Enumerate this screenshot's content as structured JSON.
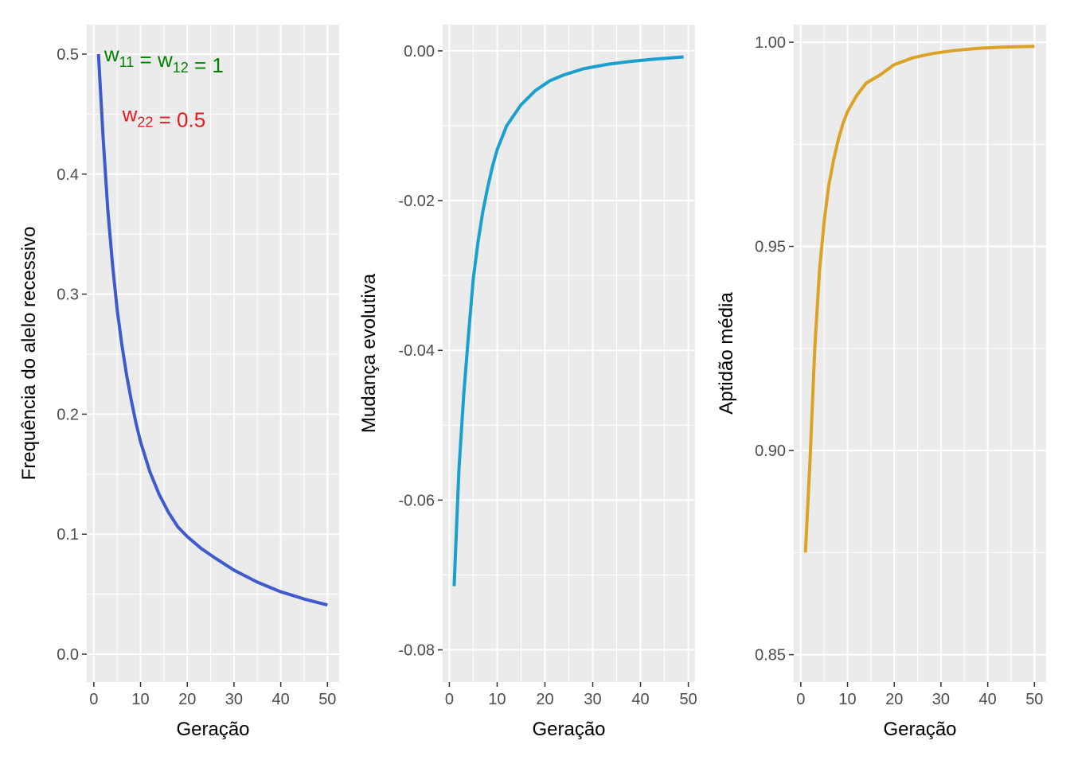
{
  "chart_data": [
    {
      "type": "line",
      "xlabel": "Geração",
      "ylabel": "Frequência do alelo recessivo",
      "xlim": [
        -1.5,
        52.5
      ],
      "ylim": [
        -0.0232,
        0.5245
      ],
      "xticks": [
        0,
        10,
        20,
        30,
        40,
        50
      ],
      "yticks": [
        0.0,
        0.1,
        0.2,
        0.3,
        0.4,
        0.5
      ],
      "ytick_labels": [
        "0.0",
        "0.1",
        "0.2",
        "0.3",
        "0.4",
        "0.5"
      ],
      "series_color": "#3f5acd",
      "x": [
        1,
        2,
        3,
        4,
        5,
        6,
        7,
        8,
        9,
        10,
        12,
        14,
        16,
        18,
        20,
        23,
        26,
        30,
        35,
        40,
        45,
        50
      ],
      "y": [
        0.5,
        0.43,
        0.37,
        0.325,
        0.287,
        0.258,
        0.233,
        0.212,
        0.193,
        0.177,
        0.152,
        0.133,
        0.118,
        0.106,
        0.098,
        0.088,
        0.08,
        0.07,
        0.06,
        0.052,
        0.046,
        0.041
      ],
      "annotations": [
        {
          "parts": [
            {
              "t": "w",
              "sub": "11"
            },
            {
              "t": " = "
            },
            {
              "t": "w",
              "sub": "12"
            },
            {
              "t": " = 1"
            }
          ],
          "x": 15,
          "y": 0.5,
          "color": "#008000"
        },
        {
          "parts": [
            {
              "t": "w",
              "sub": "22"
            },
            {
              "t": " = 0.5"
            }
          ],
          "x": 15,
          "y": 0.45,
          "color": "#e41a1c"
        }
      ]
    },
    {
      "type": "line",
      "xlabel": "Geração",
      "ylabel": "Mudança evolutiva",
      "xlim": [
        -1.4,
        51.4
      ],
      "ylim": [
        -0.0843,
        0.0035
      ],
      "xticks": [
        0,
        10,
        20,
        30,
        40,
        50
      ],
      "yticks": [
        0.0,
        -0.02,
        -0.04,
        -0.06,
        -0.08
      ],
      "ytick_labels": [
        "0.00",
        "-0.02",
        "-0.04",
        "-0.06",
        "-0.08"
      ],
      "series_color": "#1a9fcf",
      "x": [
        1,
        2,
        3,
        4,
        5,
        6,
        7,
        8,
        9,
        10,
        12,
        15,
        18,
        21,
        24,
        28,
        33,
        38,
        43,
        49
      ],
      "y": [
        -0.0715,
        -0.056,
        -0.046,
        -0.038,
        -0.0305,
        -0.0255,
        -0.0215,
        -0.0183,
        -0.0155,
        -0.0132,
        -0.01,
        -0.0072,
        -0.0053,
        -0.004,
        -0.0032,
        -0.0024,
        -0.0018,
        -0.0014,
        -0.0011,
        -0.0008
      ]
    },
    {
      "type": "line",
      "xlabel": "Geração",
      "ylabel": "Aptidão média",
      "xlim": [
        -1.5,
        52.5
      ],
      "ylim": [
        0.8433,
        1.0043
      ],
      "xticks": [
        0,
        10,
        20,
        30,
        40,
        50
      ],
      "yticks": [
        0.85,
        0.9,
        0.95,
        1.0
      ],
      "ytick_labels": [
        "0.85",
        "0.90",
        "0.95",
        "1.00"
      ],
      "series_color": "#dba227",
      "x": [
        1,
        2,
        3,
        4,
        5,
        6,
        7,
        8,
        9,
        10,
        12,
        14,
        17,
        20,
        24,
        28,
        33,
        38,
        43,
        50
      ],
      "y": [
        0.875,
        0.898,
        0.925,
        0.944,
        0.956,
        0.965,
        0.971,
        0.976,
        0.98,
        0.983,
        0.987,
        0.99,
        0.992,
        0.9945,
        0.9962,
        0.9972,
        0.998,
        0.9985,
        0.9988,
        0.999
      ]
    }
  ]
}
